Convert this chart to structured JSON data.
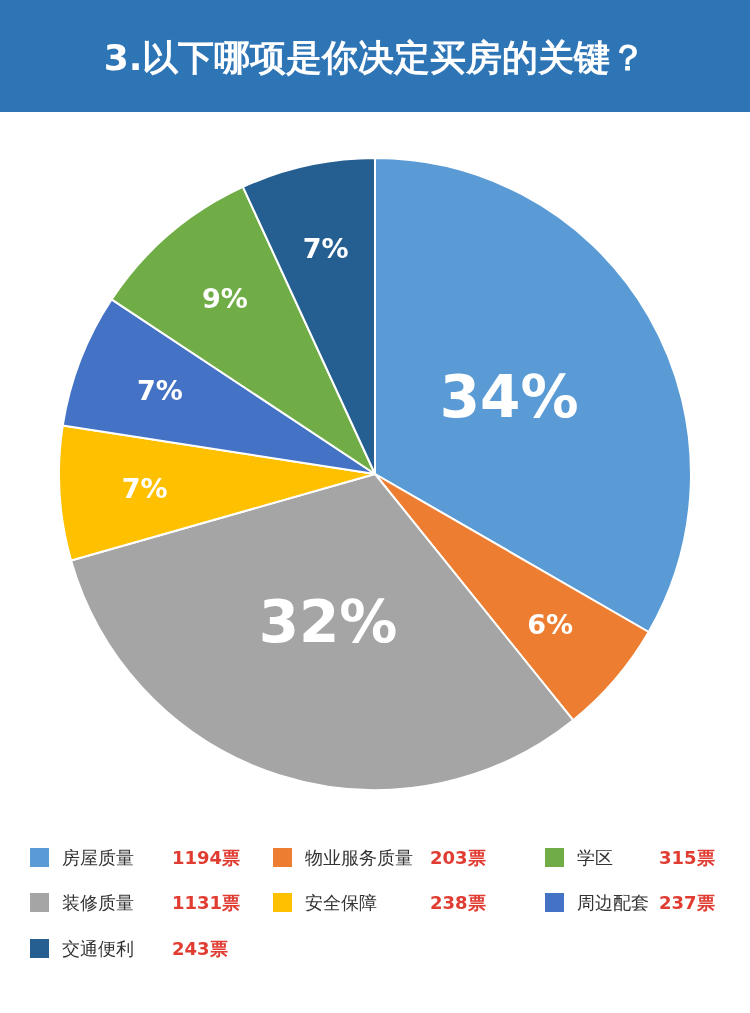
{
  "chart_data": {
    "type": "pie",
    "title": "3.以下哪项是你决定买房的关键？",
    "categories": [
      "房屋质量",
      "物业服务质量",
      "装修质量",
      "安全保障",
      "周边配套",
      "学区",
      "交通便利"
    ],
    "values": [
      34,
      6,
      32,
      7,
      7,
      9,
      7
    ],
    "colors": [
      "#5b9bd5",
      "#ed7d31",
      "#a5a5a5",
      "#ffc000",
      "#4472c4",
      "#70ad47",
      "#255e91"
    ],
    "value_labels": [
      "34%",
      "6%",
      "32%",
      "7%",
      "7%",
      "9%",
      "7%"
    ],
    "annotations": [
      "1194票",
      "203票",
      "1131票",
      "238票",
      "237票",
      "315票",
      "243票"
    ],
    "legend": "bottom"
  }
}
